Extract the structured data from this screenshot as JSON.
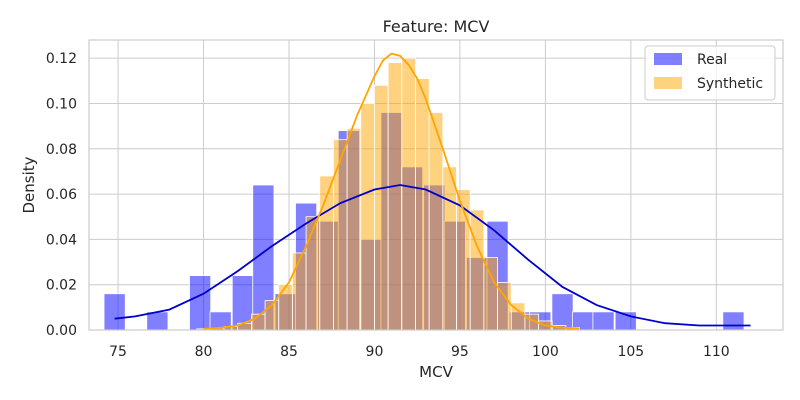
{
  "chart_data": {
    "type": "bar",
    "title": "Feature: MCV",
    "xlabel": "MCV",
    "ylabel": "Density",
    "xlim": [
      73.3,
      113.9
    ],
    "ylim": [
      0,
      0.128
    ],
    "xticks": [
      75,
      80,
      85,
      90,
      95,
      100,
      105,
      110
    ],
    "yticks": [
      0.0,
      0.02,
      0.04,
      0.06,
      0.08,
      0.1,
      0.12
    ],
    "ytick_labels": [
      "0.00",
      "0.02",
      "0.04",
      "0.06",
      "0.08",
      "0.10",
      "0.12"
    ],
    "grid": true,
    "legend_position": "top-right",
    "colors": {
      "real": "#0000ff",
      "synthetic": "#ffa500",
      "grid": "#cccccc",
      "frame": "#cccccc"
    },
    "series": [
      {
        "name": "Real",
        "color": "#0000ff",
        "bin_width": 1.24,
        "x": [
          74.8,
          77.3,
          79.8,
          81.0,
          82.3,
          83.5,
          84.8,
          86.0,
          87.3,
          88.5,
          89.8,
          91.0,
          92.2,
          93.5,
          94.7,
          96.0,
          97.2,
          98.5,
          99.7,
          101.0,
          102.2,
          103.4,
          104.7,
          111.0
        ],
        "values": [
          0.016,
          0.008,
          0.024,
          0.008,
          0.024,
          0.064,
          0.016,
          0.056,
          0.048,
          0.088,
          0.04,
          0.096,
          0.072,
          0.064,
          0.048,
          0.032,
          0.048,
          0.008,
          0.008,
          0.016,
          0.008,
          0.008,
          0.008,
          0.008
        ]
      },
      {
        "name": "Synthetic",
        "color": "#ffa500",
        "bin_width": 0.8,
        "x": [
          80.0,
          80.8,
          81.6,
          82.4,
          83.2,
          84.0,
          84.8,
          85.6,
          86.4,
          87.2,
          88.0,
          88.8,
          89.6,
          90.4,
          91.2,
          92.0,
          92.8,
          93.6,
          94.4,
          95.2,
          96.0,
          96.8,
          97.6,
          98.4,
          99.2,
          100.0,
          100.8,
          101.6
        ],
        "values": [
          0.0005,
          0.0008,
          0.0015,
          0.003,
          0.007,
          0.013,
          0.02,
          0.034,
          0.05,
          0.068,
          0.084,
          0.089,
          0.1,
          0.108,
          0.118,
          0.12,
          0.111,
          0.096,
          0.072,
          0.062,
          0.053,
          0.032,
          0.021,
          0.012,
          0.007,
          0.004,
          0.002,
          0.001
        ]
      }
    ],
    "kde": [
      {
        "name": "Real",
        "color": "#0000cc",
        "x": [
          74.8,
          76,
          78,
          80,
          82,
          84,
          86,
          88,
          90,
          91.5,
          93,
          95,
          97,
          99,
          101,
          103,
          105,
          107,
          109,
          111,
          112
        ],
        "y": [
          0.005,
          0.006,
          0.009,
          0.016,
          0.026,
          0.037,
          0.047,
          0.056,
          0.062,
          0.064,
          0.062,
          0.055,
          0.044,
          0.031,
          0.019,
          0.011,
          0.006,
          0.003,
          0.002,
          0.002,
          0.002
        ]
      },
      {
        "name": "Synthetic",
        "color": "#ffa500",
        "x": [
          80,
          81,
          82,
          83,
          84,
          85,
          86,
          87,
          88,
          89,
          90,
          90.5,
          91,
          91.5,
          92,
          92.5,
          93,
          94,
          95,
          96,
          97,
          98,
          99,
          100,
          101,
          102
        ],
        "y": [
          0.0005,
          0.001,
          0.002,
          0.005,
          0.011,
          0.021,
          0.037,
          0.055,
          0.075,
          0.095,
          0.112,
          0.119,
          0.122,
          0.121,
          0.117,
          0.111,
          0.102,
          0.08,
          0.057,
          0.037,
          0.021,
          0.011,
          0.005,
          0.002,
          0.001,
          0.0005
        ]
      }
    ],
    "legend": [
      {
        "label": "Real",
        "color": "#0000ff"
      },
      {
        "label": "Synthetic",
        "color": "#ffa500"
      }
    ]
  }
}
